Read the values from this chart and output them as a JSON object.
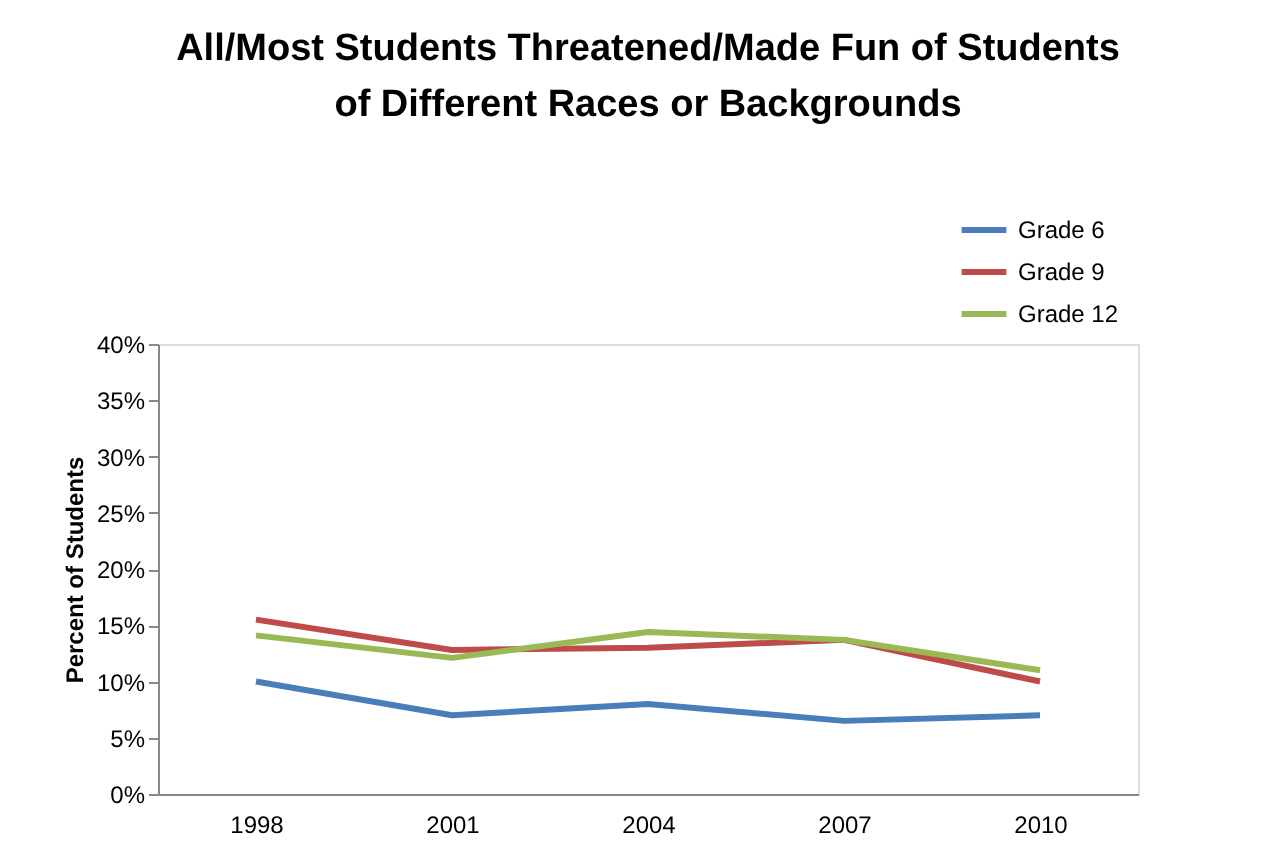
{
  "chart_data": {
    "type": "line",
    "title": "All/Most Students Threatened/Made Fun of Students of Different Races or Backgrounds",
    "ylabel": "Percent of Students",
    "categories": [
      "1998",
      "2001",
      "2004",
      "2007",
      "2010"
    ],
    "series": [
      {
        "name": "Grade 6",
        "color": "#4a7ebb",
        "values": [
          10,
          7,
          8,
          6.5,
          7
        ]
      },
      {
        "name": "Grade 9",
        "color": "#be4b48",
        "values": [
          15.5,
          12.8,
          13,
          13.7,
          10
        ]
      },
      {
        "name": "Grade 12",
        "color": "#98b954",
        "values": [
          14.1,
          12.1,
          14.4,
          13.7,
          11
        ]
      }
    ],
    "ylim": [
      0,
      40
    ],
    "yticks": [
      {
        "value": 0,
        "label": "0%"
      },
      {
        "value": 5,
        "label": "5%"
      },
      {
        "value": 10,
        "label": "10%"
      },
      {
        "value": 15,
        "label": "15%"
      },
      {
        "value": 20,
        "label": "20%"
      },
      {
        "value": 25,
        "label": "25%"
      },
      {
        "value": 30,
        "label": "30%"
      },
      {
        "value": 35,
        "label": "35%"
      },
      {
        "value": 40,
        "label": "40%"
      }
    ],
    "grid": false,
    "legend": "top right",
    "marker": "none",
    "line_style": "solid"
  }
}
